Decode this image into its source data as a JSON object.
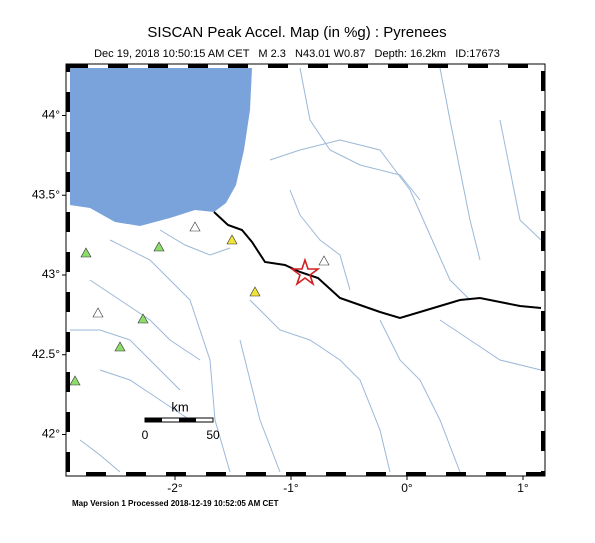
{
  "header": {
    "title": "SISCAN Peak Accel. Map (in %g) : Pyrenees",
    "subtitle": "Dec 19, 2018 10:50:15 AM CET   M 2.3   N43.01 W0.87   Depth: 16.2km   ID:17673"
  },
  "map": {
    "lat_ticks": [
      {
        "value": 44,
        "label": "44°"
      },
      {
        "value": 43.5,
        "label": "43.5°"
      },
      {
        "value": 43,
        "label": "43°"
      },
      {
        "value": 42.5,
        "label": "42.5°"
      },
      {
        "value": 42,
        "label": "42°"
      }
    ],
    "lon_ticks": [
      {
        "value": -2,
        "label": "-2°"
      },
      {
        "value": -1,
        "label": "-1°"
      },
      {
        "value": 0,
        "label": "0°"
      },
      {
        "value": 1,
        "label": "1°"
      }
    ]
  },
  "scale_bar": {
    "unit": "km",
    "labels": [
      "0",
      "50"
    ]
  },
  "footer": "Map Version 1 Processed 2018-12-19 10:52:05 AM CET"
}
